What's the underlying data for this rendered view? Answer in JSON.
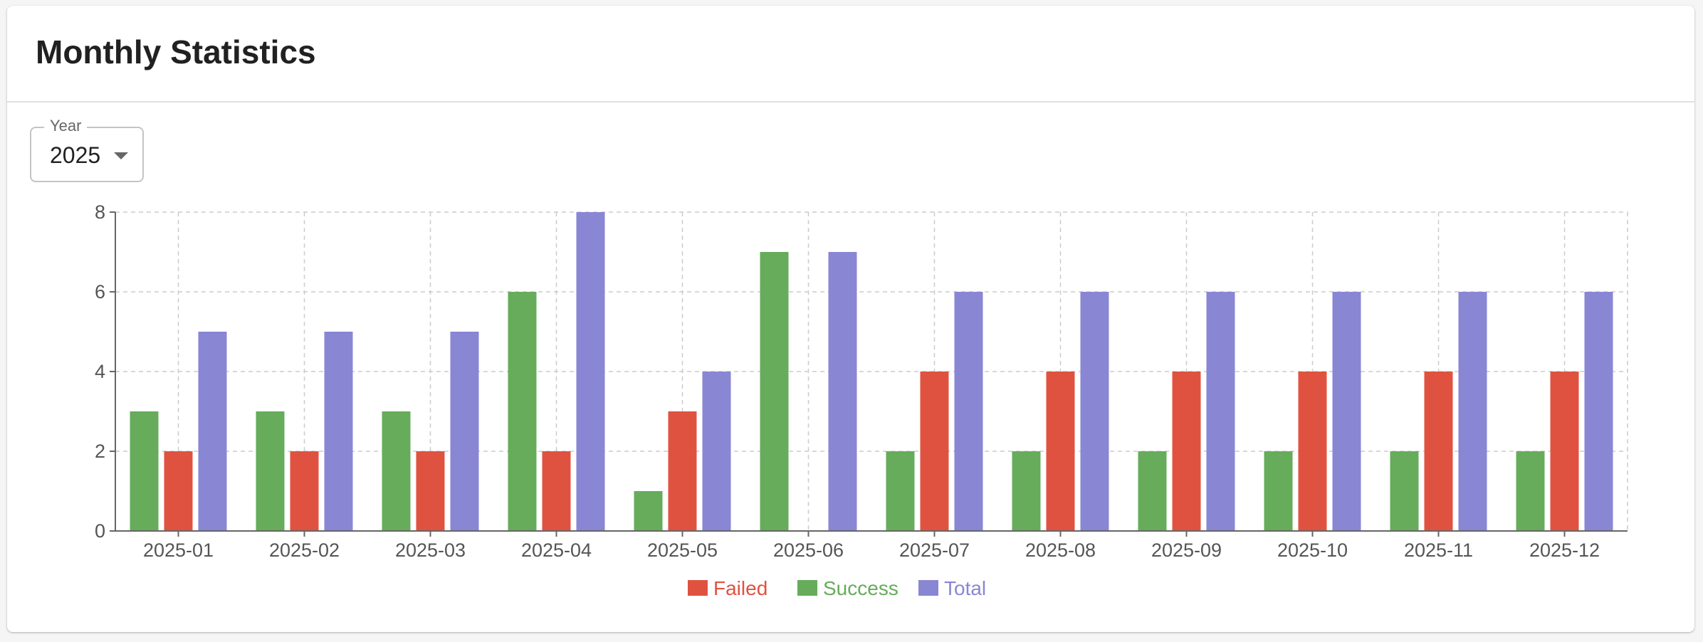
{
  "card": {
    "title": "Monthly Statistics"
  },
  "filter": {
    "year_label": "Year",
    "year_value": "2025"
  },
  "colors": {
    "Failed": "#e05240",
    "Success": "#66ac5b",
    "Total": "#8986d4",
    "grid": "#cccccc",
    "axis": "#666666"
  },
  "chart_data": {
    "type": "bar",
    "categories": [
      "2025-01",
      "2025-02",
      "2025-03",
      "2025-04",
      "2025-05",
      "2025-06",
      "2025-07",
      "2025-08",
      "2025-09",
      "2025-10",
      "2025-11",
      "2025-12"
    ],
    "series": [
      {
        "name": "Success",
        "values": [
          3,
          3,
          3,
          6,
          1,
          7,
          2,
          2,
          2,
          2,
          2,
          2
        ]
      },
      {
        "name": "Failed",
        "values": [
          2,
          2,
          2,
          2,
          3,
          0,
          4,
          4,
          4,
          4,
          4,
          4
        ]
      },
      {
        "name": "Total",
        "values": [
          5,
          5,
          5,
          8,
          4,
          7,
          6,
          6,
          6,
          6,
          6,
          6
        ]
      }
    ],
    "legend_order": [
      "Failed",
      "Success",
      "Total"
    ],
    "yticks": [
      0,
      2,
      4,
      6,
      8
    ],
    "ylim": [
      0,
      8
    ],
    "grid": true,
    "legend_position": "bottom-center"
  }
}
